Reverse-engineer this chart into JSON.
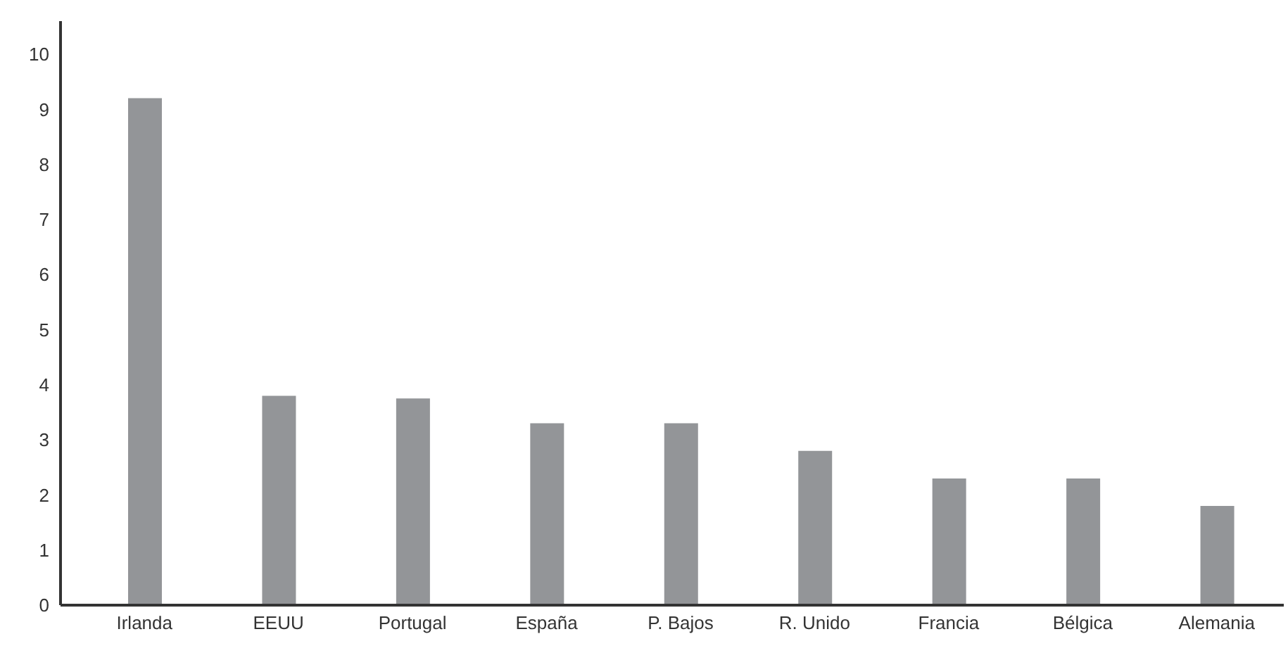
{
  "chart_data": {
    "type": "bar",
    "categories": [
      "Irlanda",
      "EEUU",
      "Portugal",
      "España",
      "P. Bajos",
      "R. Unido",
      "Francia",
      "Bélgica",
      "Alemania"
    ],
    "values": [
      9.2,
      3.8,
      3.75,
      3.3,
      3.3,
      2.8,
      2.3,
      2.3,
      1.8
    ],
    "color": "#939598",
    "ylim": [
      0,
      10.6
    ],
    "yticks": [
      0,
      1,
      2,
      3,
      4,
      5,
      6,
      7,
      8,
      9,
      10
    ],
    "grid": false
  }
}
